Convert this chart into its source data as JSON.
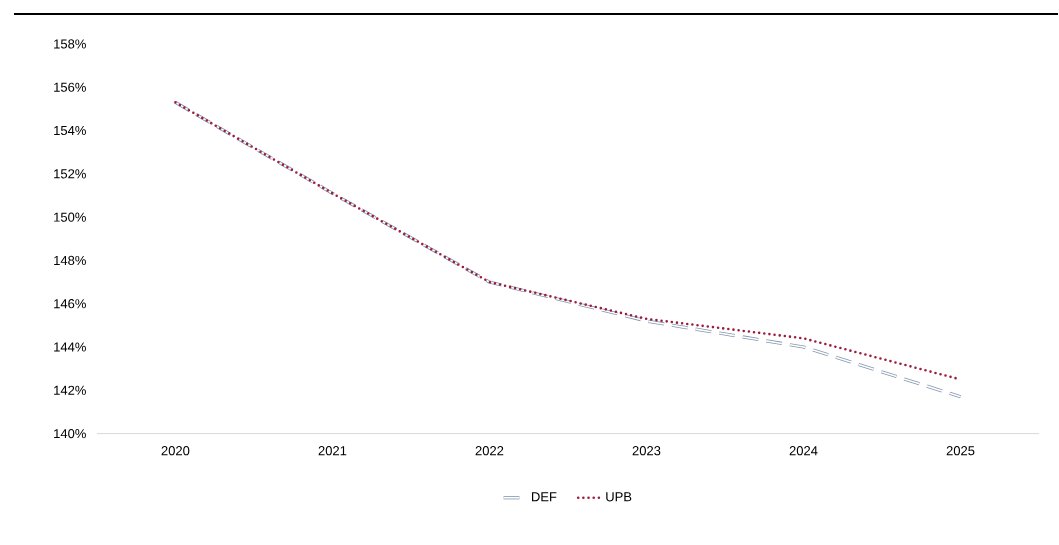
{
  "chart_data": {
    "type": "line",
    "categories": [
      "2020",
      "2021",
      "2022",
      "2023",
      "2024",
      "2025"
    ],
    "series": [
      {
        "name": "DEF",
        "color": "#8497b0",
        "line_style": "dashed",
        "values": [
          155.3,
          151.1,
          147.0,
          145.2,
          144.0,
          141.7
        ]
      },
      {
        "name": "UPB",
        "color": "#9b1c3c",
        "line_style": "dotted",
        "values": [
          155.3,
          151.1,
          147.0,
          145.3,
          144.4,
          142.5
        ]
      }
    ],
    "ylim": [
      140,
      158
    ],
    "yticks": [
      {
        "value": 140,
        "label": "140%"
      },
      {
        "value": 142,
        "label": "142%"
      },
      {
        "value": 144,
        "label": "144%"
      },
      {
        "value": 146,
        "label": "146%"
      },
      {
        "value": 148,
        "label": "148%"
      },
      {
        "value": 150,
        "label": "150%"
      },
      {
        "value": 152,
        "label": "152%"
      },
      {
        "value": 154,
        "label": "154%"
      },
      {
        "value": 156,
        "label": "156%"
      },
      {
        "value": 158,
        "label": "158%"
      }
    ],
    "grid": false,
    "legend": "bottom",
    "marker": "none"
  }
}
